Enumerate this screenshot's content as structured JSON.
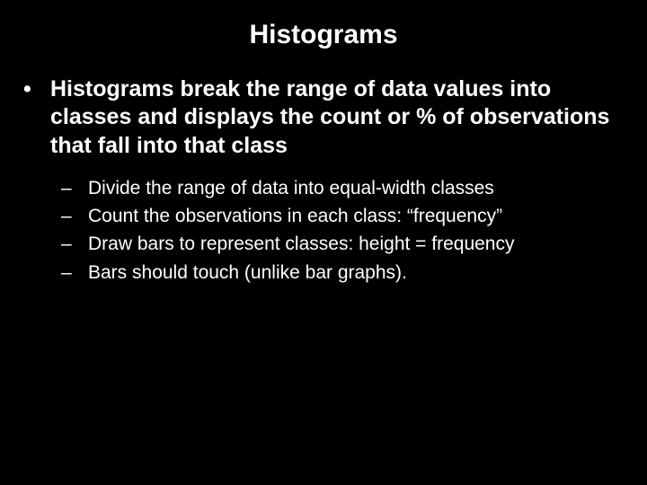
{
  "slide": {
    "background_color": "#000000",
    "text_color": "#ffffff",
    "title": "Histograms",
    "title_fontsize": 30,
    "title_fontweight": "bold",
    "bullets": {
      "level1": [
        "Histograms break the range of data values into classes and displays the count or % of observations that fall into that class"
      ],
      "level1_bullet_char": "•",
      "level1_fontsize": 25,
      "level1_fontweight": "bold",
      "level2": [
        "Divide the range of data into equal-width classes",
        "Count the observations in each class: “frequency”",
        "Draw bars to represent classes:  height = frequency",
        "Bars should touch (unlike bar graphs)."
      ],
      "level2_bullet_char": "–",
      "level2_fontsize": 21,
      "level2_fontweight": "normal"
    }
  }
}
